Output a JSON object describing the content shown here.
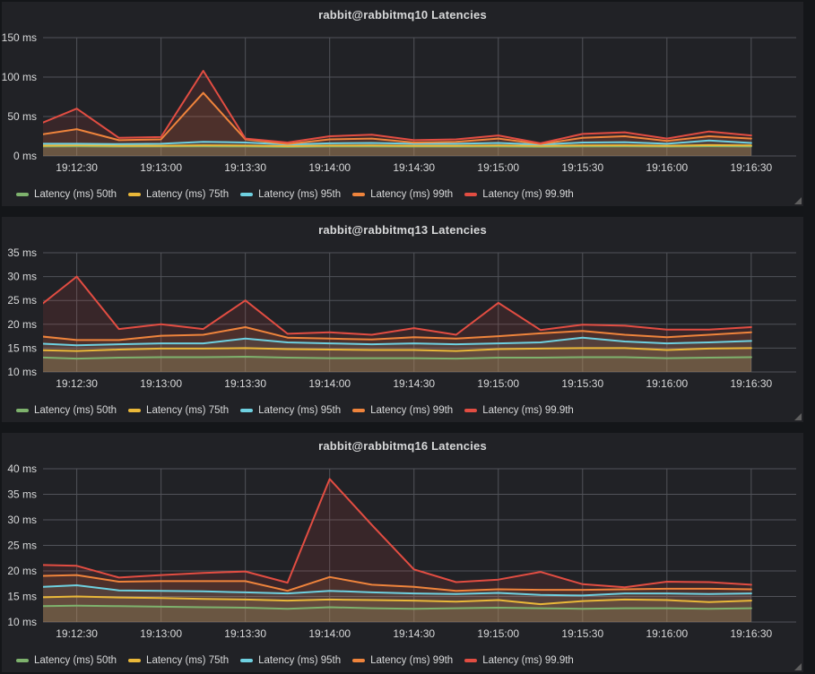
{
  "theme": {
    "page_bg": "#141619",
    "panel_bg": "#212226",
    "grid_color": "#515359",
    "tick_text_color": "#d8d9da",
    "title_color": "#d8d9da",
    "fill_opacity": 0.12
  },
  "x_times": [
    "19:12:15",
    "19:12:30",
    "19:12:45",
    "19:13:00",
    "19:13:15",
    "19:13:30",
    "19:13:45",
    "19:14:00",
    "19:14:15",
    "19:14:30",
    "19:14:45",
    "19:15:00",
    "19:15:15",
    "19:15:30",
    "19:15:45",
    "19:16:00",
    "19:16:15",
    "19:16:30"
  ],
  "x_tick_labels": [
    "19:12:30",
    "19:13:00",
    "19:13:30",
    "19:14:00",
    "19:14:30",
    "19:15:00",
    "19:15:30",
    "19:16:00",
    "19:16:30"
  ],
  "x_range": [
    "19:12:18",
    "19:16:46"
  ],
  "panels": [
    {
      "title": "rabbit@rabbitmq10 Latencies",
      "chart_data": {
        "type": "area",
        "title": "rabbit@rabbitmq10 Latencies",
        "ylim": [
          0,
          150
        ],
        "ytick_values": [
          0,
          50,
          100,
          150
        ],
        "ytick_labels": [
          "0 ms",
          "50 ms",
          "100 ms",
          "150 ms"
        ],
        "grid": true,
        "legend_position": "bottom-left",
        "series": [
          {
            "name": "Latency (ms) 50th",
            "color": "#7EB26D",
            "values": [
              12,
              12.2,
              11.9,
              12,
              12.2,
              12,
              11.5,
              12,
              12.1,
              11.9,
              11.9,
              12.1,
              11.6,
              12.1,
              12.2,
              11.9,
              12.4,
              12
            ]
          },
          {
            "name": "Latency (ms) 75th",
            "color": "#EAB839",
            "values": [
              13,
              13.5,
              13,
              13,
              13.5,
              13.2,
              12.5,
              13.2,
              13.3,
              13,
              13,
              13.3,
              12.8,
              13.3,
              13.5,
              13,
              13.8,
              13.3
            ]
          },
          {
            "name": "Latency (ms) 95th",
            "color": "#6ED0E0",
            "values": [
              15.5,
              15.5,
              15,
              15.5,
              18,
              17,
              14.5,
              16,
              16.5,
              15.5,
              15.5,
              16.5,
              14.5,
              17,
              17.5,
              15.5,
              19.5,
              16.5
            ]
          },
          {
            "name": "Latency (ms) 99th",
            "color": "#EF843C",
            "values": [
              26,
              34,
              20,
              21,
              80,
              21,
              15,
              21,
              22,
              17,
              18,
              22,
              15,
              23,
              25,
              19,
              25,
              22
            ]
          },
          {
            "name": "Latency (ms) 99.9th",
            "color": "#E24D42",
            "values": [
              38,
              60,
              23,
              24,
              108,
              22,
              17,
              25,
              27,
              20,
              21,
              26,
              16,
              28,
              30,
              22,
              31,
              26
            ]
          }
        ]
      }
    },
    {
      "title": "rabbit@rabbitmq13 Latencies",
      "chart_data": {
        "type": "area",
        "title": "rabbit@rabbitmq13 Latencies",
        "ylim": [
          10,
          35
        ],
        "ytick_values": [
          10,
          15,
          20,
          25,
          30,
          35
        ],
        "ytick_labels": [
          "10 ms",
          "15 ms",
          "20 ms",
          "25 ms",
          "30 ms",
          "35 ms"
        ],
        "grid": true,
        "legend_position": "bottom-left",
        "series": [
          {
            "name": "Latency (ms) 50th",
            "color": "#7EB26D",
            "values": [
              13.1,
              12.8,
              13,
              13.1,
              13.1,
              13.2,
              13,
              12.9,
              12.9,
              12.9,
              12.8,
              13,
              13,
              13.1,
              13.1,
              12.9,
              13,
              13.1
            ]
          },
          {
            "name": "Latency (ms) 75th",
            "color": "#EAB839",
            "values": [
              14.6,
              14.4,
              14.7,
              14.9,
              14.9,
              15,
              14.8,
              14.7,
              14.6,
              14.6,
              14.4,
              14.8,
              14.9,
              15,
              15,
              14.6,
              14.9,
              15
            ]
          },
          {
            "name": "Latency (ms) 95th",
            "color": "#6ED0E0",
            "values": [
              16,
              15.6,
              15.8,
              16,
              16,
              17,
              16.2,
              16,
              15.8,
              16,
              15.8,
              16,
              16.2,
              17.2,
              16.4,
              16,
              16.2,
              16.5
            ]
          },
          {
            "name": "Latency (ms) 99th",
            "color": "#EF843C",
            "values": [
              17.6,
              16.7,
              16.7,
              17.6,
              17.8,
              19.4,
              17.2,
              17,
              16.8,
              17.3,
              17,
              17.5,
              18.1,
              18.6,
              17.8,
              17.3,
              17.8,
              18.3
            ]
          },
          {
            "name": "Latency (ms) 99.9th",
            "color": "#E24D42",
            "values": [
              23,
              30,
              19,
              20,
              19,
              25,
              18,
              18.3,
              17.8,
              19.2,
              17.8,
              24.5,
              18.8,
              19.9,
              19.7,
              18.9,
              18.9,
              19.4
            ]
          }
        ]
      }
    },
    {
      "title": "rabbit@rabbitmq16 Latencies",
      "chart_data": {
        "type": "area",
        "title": "rabbit@rabbitmq16 Latencies",
        "ylim": [
          10,
          40
        ],
        "ytick_values": [
          10,
          15,
          20,
          25,
          30,
          35,
          40
        ],
        "ytick_labels": [
          "10 ms",
          "15 ms",
          "20 ms",
          "25 ms",
          "30 ms",
          "35 ms",
          "40 ms"
        ],
        "grid": true,
        "legend_position": "bottom-left",
        "series": [
          {
            "name": "Latency (ms) 50th",
            "color": "#7EB26D",
            "values": [
              13.1,
              13.2,
              13.1,
              13,
              12.9,
              12.8,
              12.6,
              12.9,
              12.7,
              12.6,
              12.7,
              12.8,
              12.7,
              12.6,
              12.7,
              12.7,
              12.6,
              12.7
            ]
          },
          {
            "name": "Latency (ms) 75th",
            "color": "#EAB839",
            "values": [
              14.8,
              15,
              14.8,
              14.7,
              14.5,
              14.4,
              14.2,
              14.4,
              14.3,
              14.2,
              14,
              14.3,
              13.5,
              14.1,
              14.4,
              14.3,
              13.9,
              14.2
            ]
          },
          {
            "name": "Latency (ms) 95th",
            "color": "#6ED0E0",
            "values": [
              16.8,
              17.2,
              16.2,
              16.1,
              16,
              15.8,
              15.6,
              16.1,
              15.8,
              15.6,
              15.5,
              15.7,
              15.3,
              15.2,
              15.6,
              15.6,
              15.5,
              15.6
            ]
          },
          {
            "name": "Latency (ms) 99th",
            "color": "#EF843C",
            "values": [
              19,
              19.2,
              17.9,
              18,
              18,
              18,
              16.1,
              18.8,
              17.3,
              16.9,
              16.1,
              16.4,
              16.3,
              16.3,
              16.4,
              16.5,
              16.5,
              16.4
            ]
          },
          {
            "name": "Latency (ms) 99.9th",
            "color": "#E24D42",
            "values": [
              21.2,
              21,
              18.7,
              19.2,
              19.6,
              19.9,
              17.7,
              38,
              29,
              20.3,
              17.8,
              18.3,
              19.8,
              17.4,
              16.8,
              17.9,
              17.8,
              17.3
            ]
          }
        ]
      }
    }
  ]
}
